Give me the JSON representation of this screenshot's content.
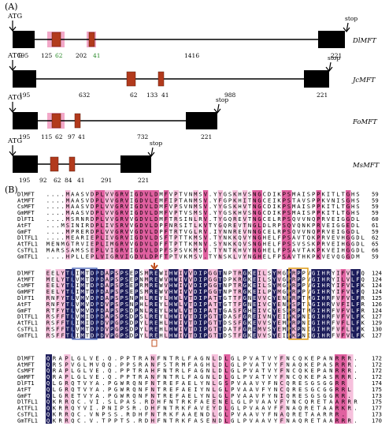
{
  "panel_a": {
    "label": "(A)",
    "genes": [
      {
        "name": "DlMFT",
        "start_label": "ATG",
        "stop_label": "stop",
        "numbers": [
          {
            "text": "195",
            "color": "#000000"
          },
          {
            "text": "125",
            "color": "#000000"
          },
          {
            "text": "62",
            "color": "#2a8a2a"
          },
          {
            "text": "202",
            "color": "#000000"
          },
          {
            "text": "41",
            "color": "#2a8a2a"
          },
          {
            "text": "1416",
            "color": "#000000"
          },
          {
            "text": "221",
            "color": "#000000"
          }
        ]
      },
      {
        "name": "JcMFT",
        "start_label": "ATG",
        "stop_label": "stop",
        "numbers": [
          {
            "text": "195",
            "color": "#000000"
          },
          {
            "text": "632",
            "color": "#000000"
          },
          {
            "text": "62",
            "color": "#000000"
          },
          {
            "text": "133",
            "color": "#000000"
          },
          {
            "text": "41",
            "color": "#000000"
          },
          {
            "text": "988",
            "color": "#000000"
          },
          {
            "text": "221",
            "color": "#000000"
          }
        ]
      },
      {
        "name": "FoMFT",
        "start_label": "ATG",
        "stop_label": "stop",
        "numbers": [
          {
            "text": "195",
            "color": "#000000"
          },
          {
            "text": "115",
            "color": "#000000"
          },
          {
            "text": "62",
            "color": "#000000"
          },
          {
            "text": "97",
            "color": "#000000"
          },
          {
            "text": "41",
            "color": "#000000"
          },
          {
            "text": "732",
            "color": "#000000"
          },
          {
            "text": "221",
            "color": "#000000"
          }
        ]
      },
      {
        "name": "MsMFT",
        "start_label": "ATG",
        "stop_label": "stop",
        "numbers": [
          {
            "text": "195",
            "color": "#000000"
          },
          {
            "text": "92",
            "color": "#000000"
          },
          {
            "text": "62",
            "color": "#000000"
          },
          {
            "text": "84",
            "color": "#000000"
          },
          {
            "text": "41",
            "color": "#000000"
          },
          {
            "text": "291",
            "color": "#000000"
          },
          {
            "text": "221",
            "color": "#000000"
          }
        ]
      }
    ],
    "colors": {
      "exon": "#000000",
      "small_exon": "#b23a1c",
      "highlight": "#f2a8c8",
      "intron": "#000000"
    }
  },
  "panel_b": {
    "label": "(B)",
    "colors": {
      "identical": "#1c1c5a",
      "similar": "#e060a0",
      "partial": "#f6c0dc",
      "box_blue": "#3050b0",
      "box_orange": "#e0a020",
      "arrow": "#c05020"
    },
    "blocks": [
      {
        "rows": [
          {
            "name": "DlMFT",
            "seq": "....MAASVDPLVVGRVIGDVLDMFVPTVNMSV.YYGSKHVSNGCDIKPSMAISPPKITLTGHS",
            "num": "59"
          },
          {
            "name": "AtMFT",
            "seq": "....MAASVDPLVVGRVIGDVLEMFIPTANMSV.YFGPKHITNGCEIKPSTAVSPPKVNISGHS",
            "num": "59"
          },
          {
            "name": "CsMFT",
            "seq": "....MAASVDPLVVGRVIGDVLDMFVPSVNMSV.YYGSKHVTNGCDIKPSMAISPPKITLTGHS",
            "num": "59"
          },
          {
            "name": "GmMFT",
            "seq": "....MAASVDPLVVGRVIGDVLDMFVPTVSMSV.YYGSKHVSNGCDIKPSMAISPPKITLTGHS",
            "num": "59"
          },
          {
            "name": "DlFT1",
            "seq": "....MSRNRDPLVVGRVVGDVLDMFTRSINLRV.TYGQREVTNGCELRPSQVVNQPRVEIGGDL",
            "num": "60"
          },
          {
            "name": "AtFT",
            "seq": "...MSINIRDPLIVSRVVGDVLDPFNRSITLKVTYGQREVTNGLDLRPSQVQNKPRVEIGGEDL",
            "num": "61"
          },
          {
            "name": "GmFT",
            "seq": "....MPRERDPLVVGRVVGDVLDPFTRTVGLRV.IYNNREVNNGCELRPSQVVNQPRVEIGGDL",
            "num": "59"
          },
          {
            "name": "DlTFL1",
            "seq": "....MEARIEPLIVGRVIGDVLDSFTPTTKMSV.TYNKKQVYNGHELFPSAVTQKPRVEVHGGDL",
            "num": "62"
          },
          {
            "name": "AtTFL1",
            "seq": "MENMGTRVIEPLIMGRVVGDVLDFFTPTTKMNV.SYNKKQVSNGHELFPSSVSSKPRVEIHGGDL",
            "num": "65"
          },
          {
            "name": "CsTFL1",
            "seq": "MARSSAMSSEPLVIGRVIGDVLDPFSPSVKMSV.TYNTKHVYNGHELFPSAVTAKPKVEIHGGDL",
            "num": "66"
          },
          {
            "name": "GmTFL1",
            "seq": "....HPLLEPLVIGRVIGDVLDPFTPTVKMSV.TYNSKLVYNGHELFPSAVTHKPKVEVQGGDM",
            "num": "59"
          }
        ]
      },
      {
        "rows": [
          {
            "name": "DlMFT",
            "seq": "EELYTLIMTDPDAPSPSEPSMREWIHWIVVDIPGGTNPTRGKEILSYMGPRPPVGIHRYIFVLFQ",
            "num": "124"
          },
          {
            "name": "AtMFT",
            "seq": "MELYTLVMTDPDAPSPSEPNMREWVHWIVVDIPGGTDPKRGKEILSYVGPRPPVGIHRYILVLFQ",
            "num": "124"
          },
          {
            "name": "CsMFT",
            "seq": "EELYTLIMTDPDAPSPSEPRMREWVHWIVVDIPGGTNPTRGKEILSYMGPRPPVGIHRYIFVLFK",
            "num": "124"
          },
          {
            "name": "GmMFT",
            "seq": "EELYTLIMTDPDAPSPSEPSMREWVHWIVVDIPGGTNPTRGKEILPYMGPRPPVGIHRYIFVLFQ",
            "num": "124"
          },
          {
            "name": "DlFT1",
            "seq": "RNFYTLVMVDPDAPSPSNPHLREYLHWLVTDIPATTGTTFGNEVVCYENPRPTMGIHRFVFVLFR",
            "num": "125"
          },
          {
            "name": "AtFT",
            "seq": "RNFYTLVMVDPDVPSPSNPHLREYLHWLVTDIPATTGTTFGNEIVCYENPSPTAGIHRVVFILFR",
            "num": "126"
          },
          {
            "name": "GmFT",
            "seq": "RTFYTLVMVDPDAPSPSDPNLREYLHWLVTDIPATTGASFGHEIVCYESPRPTMGIHRFVFVLFR",
            "num": "124"
          },
          {
            "name": "DlTFL1",
            "seq": "RSFFTLVMIDPDAPSPSDPSLREYLHWIVTDIPGTTDASFGREIVNYEIPKPNIGIHRFVFVLFK",
            "num": "127"
          },
          {
            "name": "AtTFL1",
            "seq": "RSFFTLIMIDPDVPGPSDPYLREHLHWIVTDIPGTTDSSFGKEVVSYEMPRPNIGIHRFVFLLFK",
            "num": "129"
          },
          {
            "name": "CsTFL1",
            "seq": "RSFFTLVMTDPDVPGPSDPYLREHLHWIVTDIPGTTDATFGREMVSYEMPKPNIGIHRFVFLLFK",
            "num": "130"
          },
          {
            "name": "GmTFL1",
            "seq": "RSFFTLIMTDPDVPGPSDPYLREHLHWIVTDIPGTTDSTFGKEVVSYEIPKPNIGIHRFVFVLFK",
            "num": "127"
          }
        ]
      },
      {
        "rows": [
          {
            "name": "DlMFT",
            "seq": "QRAPLGLVE.Q.PPTRANFNTRLFAGNLDLGLPVATVYFNCQKEPANRRR.",
            "num": "172"
          },
          {
            "name": "AtMFT",
            "seq": "QRSPVGLMVQQ.PPSRANFSTRMFAGHLDLGLPVATVYFNAQKEPASRRR.",
            "num": "172"
          },
          {
            "name": "CsMFT",
            "seq": "QRAPLGLVE.Q.PPTRAHFNTRLFAGNLDLGLPVATVYFNCQKEPANRRR.",
            "num": "172"
          },
          {
            "name": "GmMFT",
            "seq": "QRAPLGLVE.Q.PPTRANFNTRLFAGNLDLGLPVATVYFNCQKEPASRRR.",
            "num": "172"
          },
          {
            "name": "DlFT1",
            "seq": "QLGRQTVYA.PGWRQNFNTREFAELYNLGSPVAAVYFNCQRESGSGGRR",
            "num": "174"
          },
          {
            "name": "AtFT",
            "seq": "QLGRQTVYA.PGWRQNFNTREFAEIYNLGLPVAAVFYNCQRESGCGGRRL",
            "num": "175"
          },
          {
            "name": "GmFT",
            "seq": "QLGRETVYA.PGWRQNFNTREFAELYNLGLPVAAVFYNIQRESGSGGRR.",
            "num": "173"
          },
          {
            "name": "DlTFL1",
            "seq": "QKRRQC.VI.SLPAS.RDHFNTRKFAEENELGLPVAAVFYNCQRETAARRR.",
            "num": "175"
          },
          {
            "name": "AtTFL1",
            "seq": "QKRRQYVI.PNIPSR.DHFNTRKFAVEYDLGLPVAAVFFNAQRETAARKR.",
            "num": "177"
          },
          {
            "name": "CsTFL1",
            "seq": "QKRRQC.VNPSS.RDHFNTRKFAAENDLGLPVAAVYFNAQRETAARRR.",
            "num": "173"
          },
          {
            "name": "GmTFL1",
            "seq": "QKRRQC.V.TPPTS.RDHFNTRKFASENDLGLPVAAVYFNAQRETAARRR.",
            "num": "170"
          }
        ]
      }
    ]
  }
}
